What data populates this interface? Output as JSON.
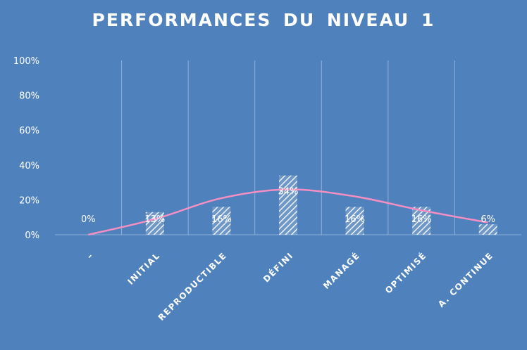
{
  "chart_data": {
    "type": "bar",
    "title": "PERFORMANCES DU  NIVEAU 1",
    "xlabel": "",
    "ylabel": "",
    "categories": [
      "–",
      "INITIAL",
      "REPRODUCTIBLE",
      "DÉFINI",
      "MANAGÉ",
      "OPTIMISÉ",
      "A. CONTINUE"
    ],
    "values": [
      0,
      13,
      16,
      34,
      16,
      16,
      6
    ],
    "data_labels": [
      "0%",
      "13%",
      "16%",
      "34%",
      "16%",
      "16%",
      "6%"
    ],
    "y_ticks": [
      "0%",
      "20%",
      "40%",
      "60%",
      "80%",
      "100%"
    ],
    "ylim": [
      0,
      100
    ],
    "grid": "vertical",
    "legend": "none",
    "trend_curve": {
      "type": "line",
      "smooth": true,
      "values": [
        0,
        9,
        21,
        26,
        22,
        14,
        7
      ],
      "color": "#f48fc2"
    },
    "colors": {
      "background": "#4f81bd",
      "bar_hatch": "#ffffff",
      "grid": "#8fb0d8",
      "text": "#ffffff"
    }
  }
}
